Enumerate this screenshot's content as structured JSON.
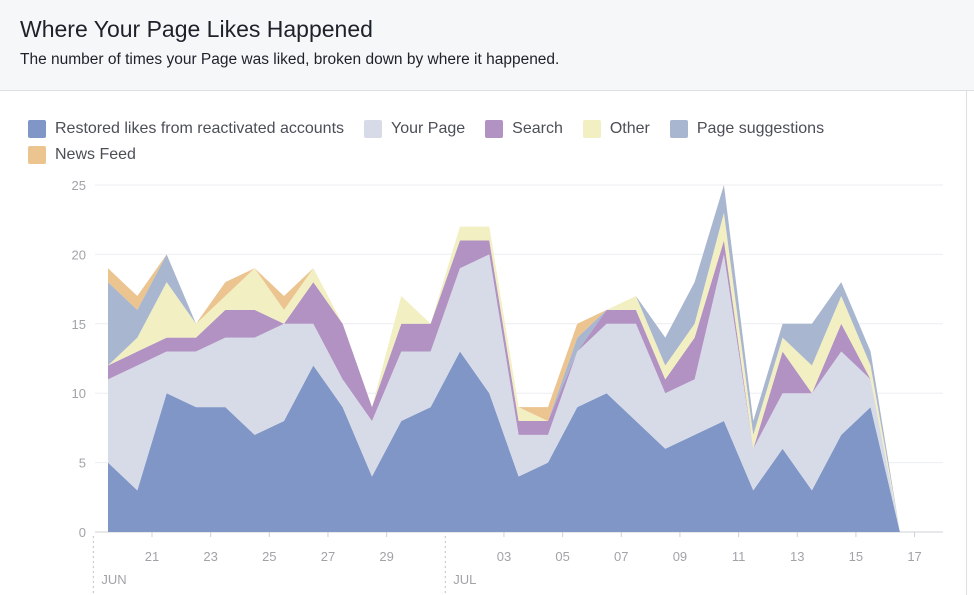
{
  "header": {
    "title": "Where Your Page Likes Happened",
    "subtitle": "The number of times your Page was liked, broken down by where it happened."
  },
  "chart_data": {
    "type": "area",
    "stacked": true,
    "x": [
      "Jun 19",
      "Jun 20",
      "Jun 21",
      "Jun 22",
      "Jun 23",
      "Jun 24",
      "Jun 25",
      "Jun 26",
      "Jun 27",
      "Jun 28",
      "Jun 29",
      "Jun 30",
      "Jul 01",
      "Jul 02",
      "Jul 03",
      "Jul 04",
      "Jul 05",
      "Jul 06",
      "Jul 07",
      "Jul 08",
      "Jul 09",
      "Jul 10",
      "Jul 11",
      "Jul 12",
      "Jul 13",
      "Jul 14",
      "Jul 15",
      "Jul 16",
      "Jul 17"
    ],
    "ylim": [
      0,
      25
    ],
    "yticks": [
      0,
      5,
      10,
      15,
      20,
      25
    ],
    "xtick_labels": [
      "21",
      "23",
      "25",
      "27",
      "29",
      "03",
      "05",
      "07",
      "09",
      "11",
      "13",
      "15",
      "17"
    ],
    "month_labels": [
      "JUN",
      "JUL"
    ],
    "grid": true,
    "legend_position": "top-left",
    "series": [
      {
        "name": "Restored likes from reactivated accounts",
        "color": "#7f96c6",
        "values": [
          5,
          3,
          10,
          9,
          9,
          7,
          8,
          12,
          9,
          4,
          8,
          9,
          13,
          10,
          4,
          5,
          9,
          10,
          8,
          6,
          7,
          8,
          3,
          6,
          3,
          7,
          9,
          0,
          0
        ]
      },
      {
        "name": "Your Page",
        "color": "#d7dbe8",
        "values": [
          6,
          9,
          3,
          4,
          5,
          7,
          7,
          3,
          2,
          4,
          5,
          4,
          6,
          10,
          3,
          2,
          4,
          5,
          7,
          4,
          4,
          12,
          3,
          4,
          7,
          6,
          2,
          0,
          0
        ]
      },
      {
        "name": "Search",
        "color": "#b192c2",
        "values": [
          1,
          1,
          1,
          1,
          2,
          2,
          0,
          3,
          4,
          1,
          2,
          2,
          2,
          1,
          1,
          1,
          0,
          1,
          1,
          1,
          3,
          1,
          0,
          3,
          0,
          2,
          0,
          0,
          0
        ]
      },
      {
        "name": "Other",
        "color": "#f2efc2",
        "values": [
          0,
          1,
          4,
          1,
          1,
          3,
          1,
          1,
          0,
          0,
          2,
          0,
          1,
          1,
          1,
          0,
          0,
          0,
          1,
          1,
          1,
          2,
          1,
          1,
          2,
          2,
          1,
          0,
          0
        ]
      },
      {
        "name": "Page suggestions",
        "color": "#a9b6cf",
        "values": [
          6,
          2,
          2,
          0,
          0,
          0,
          0,
          0,
          0,
          0,
          0,
          0,
          0,
          0,
          0,
          0,
          1,
          0,
          0,
          2,
          3,
          2,
          1,
          1,
          3,
          1,
          1,
          0,
          0
        ]
      },
      {
        "name": "News Feed",
        "color": "#ebc48f",
        "values": [
          1,
          1,
          0,
          0,
          1,
          0,
          1,
          0,
          0,
          0,
          0,
          0,
          0,
          0,
          0,
          1,
          1,
          0,
          0,
          0,
          0,
          0,
          0,
          0,
          0,
          0,
          0,
          0,
          0
        ]
      }
    ]
  }
}
